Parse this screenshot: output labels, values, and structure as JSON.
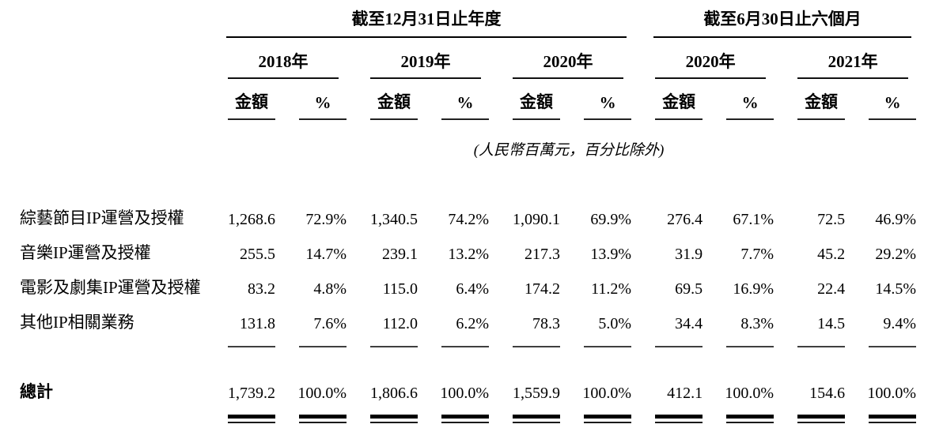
{
  "header": {
    "section_annual": "截至12月31日止年度",
    "section_interim": "截至6月30日止六個月",
    "years": [
      "2018年",
      "2019年",
      "2020年",
      "2020年",
      "2021年"
    ],
    "amount_label": "金額",
    "percent_label": "%",
    "unit_note": "(人民幣百萬元，百分比除外)"
  },
  "rows": [
    {
      "label": "綜藝節目IP運營及授權",
      "values": [
        "1,268.6",
        "72.9%",
        "1,340.5",
        "74.2%",
        "1,090.1",
        "69.9%",
        "276.4",
        "67.1%",
        "72.5",
        "46.9%"
      ]
    },
    {
      "label": "音樂IP運營及授權",
      "values": [
        "255.5",
        "14.7%",
        "239.1",
        "13.2%",
        "217.3",
        "13.9%",
        "31.9",
        "7.7%",
        "45.2",
        "29.2%"
      ]
    },
    {
      "label": "電影及劇集IP運營及授權",
      "values": [
        "83.2",
        "4.8%",
        "115.0",
        "6.4%",
        "174.2",
        "11.2%",
        "69.5",
        "16.9%",
        "22.4",
        "14.5%"
      ]
    },
    {
      "label": "其他IP相關業務",
      "values": [
        "131.8",
        "7.6%",
        "112.0",
        "6.2%",
        "78.3",
        "5.0%",
        "34.4",
        "8.3%",
        "14.5",
        "9.4%"
      ]
    }
  ],
  "total": {
    "label": "總計",
    "values": [
      "1,739.2",
      "100.0%",
      "1,806.6",
      "100.0%",
      "1,559.9",
      "100.0%",
      "412.1",
      "100.0%",
      "154.6",
      "100.0%"
    ]
  },
  "colors": {
    "background": "#ffffff",
    "text": "#000000",
    "rule": "#3f3f3f"
  }
}
